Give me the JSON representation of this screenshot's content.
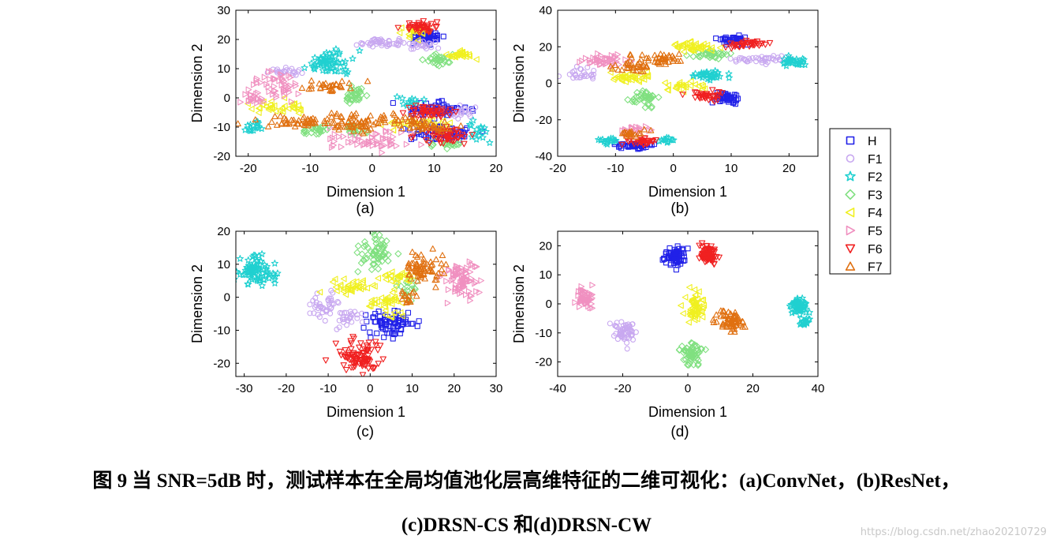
{
  "legend": [
    {
      "label": "H",
      "marker": "square",
      "color": "#2020e8"
    },
    {
      "label": "F1",
      "marker": "circle",
      "color": "#c8a8f0"
    },
    {
      "label": "F2",
      "marker": "star",
      "color": "#20d0d0"
    },
    {
      "label": "F3",
      "marker": "diamond",
      "color": "#80e080"
    },
    {
      "label": "F4",
      "marker": "triangle-left",
      "color": "#f0f020"
    },
    {
      "label": "F5",
      "marker": "triangle-right",
      "color": "#f090c0"
    },
    {
      "label": "F6",
      "marker": "triangle-down",
      "color": "#f02020"
    },
    {
      "label": "F7",
      "marker": "triangle-up",
      "color": "#e07010"
    }
  ],
  "caption": {
    "line1": "图 9  当 SNR=5dB 时，测试样本在全局均值池化层高维特征的二维可视化：(a)ConvNet，(b)ResNet，",
    "line2": "(c)DRSN-CS 和(d)DRSN-CW"
  },
  "watermark": "https://blog.csdn.net/zhao20210729",
  "chart_data": [
    {
      "type": "scatter",
      "panel": "(a)",
      "xlabel": "Dimension 1",
      "ylabel": "Dimension 2",
      "xlim": [
        -22,
        20
      ],
      "ylim": [
        -20,
        30
      ],
      "xticks": [
        -20,
        -10,
        0,
        10,
        20
      ],
      "yticks": [
        -20,
        -10,
        0,
        10,
        20,
        30
      ],
      "series": [
        {
          "name": "H",
          "clusters": [
            {
              "cx": 9,
              "cy": 21,
              "sx": 1.2,
              "sy": 1.2,
              "n": 60
            },
            {
              "cx": 10,
              "cy": -4,
              "sx": 2.5,
              "sy": 1.2,
              "n": 70
            },
            {
              "cx": 11,
              "cy": -12,
              "sx": 2.5,
              "sy": 1.5,
              "n": 60
            }
          ]
        },
        {
          "name": "F1",
          "clusters": [
            {
              "cx": 1,
              "cy": 19,
              "sx": 2.0,
              "sy": 0.8,
              "n": 45
            },
            {
              "cx": 8,
              "cy": 18,
              "sx": 1.2,
              "sy": 0.8,
              "n": 25
            },
            {
              "cx": -14,
              "cy": 9,
              "sx": 1.2,
              "sy": 0.8,
              "n": 25
            },
            {
              "cx": 15,
              "cy": -5,
              "sx": 1.0,
              "sy": 0.8,
              "n": 20
            }
          ]
        },
        {
          "name": "F2",
          "clusters": [
            {
              "cx": -7,
              "cy": 12,
              "sx": 1.5,
              "sy": 2.0,
              "n": 65
            },
            {
              "cx": -19,
              "cy": -10,
              "sx": 0.8,
              "sy": 1.0,
              "n": 15
            },
            {
              "cx": 6,
              "cy": -1,
              "sx": 0.8,
              "sy": 0.8,
              "n": 12
            },
            {
              "cx": 17,
              "cy": -12,
              "sx": 0.8,
              "sy": 1.5,
              "n": 15
            }
          ]
        },
        {
          "name": "F3",
          "clusters": [
            {
              "cx": -3,
              "cy": 1,
              "sx": 1.0,
              "sy": 1.2,
              "n": 35
            },
            {
              "cx": 11,
              "cy": 13,
              "sx": 1.0,
              "sy": 1.2,
              "n": 25
            },
            {
              "cx": -9,
              "cy": -11,
              "sx": 1.0,
              "sy": 1.0,
              "n": 25
            },
            {
              "cx": -3,
              "cy": -11,
              "sx": 1.0,
              "sy": 1.0,
              "n": 20
            },
            {
              "cx": 12,
              "cy": -16,
              "sx": 1.5,
              "sy": 0.8,
              "n": 20
            }
          ]
        },
        {
          "name": "F4",
          "clusters": [
            {
              "cx": 14,
              "cy": 15,
              "sx": 1.2,
              "sy": 0.6,
              "n": 30
            },
            {
              "cx": 7,
              "cy": 23,
              "sx": 1.5,
              "sy": 1.2,
              "n": 25
            },
            {
              "cx": -15,
              "cy": -3,
              "sx": 2.5,
              "sy": 1.2,
              "n": 35
            },
            {
              "cx": 7,
              "cy": -9,
              "sx": 3.0,
              "sy": 1.2,
              "n": 30
            }
          ]
        },
        {
          "name": "F5",
          "clusters": [
            {
              "cx": -15,
              "cy": 4,
              "sx": 2.0,
              "sy": 2.5,
              "n": 45
            },
            {
              "cx": -19,
              "cy": 0,
              "sx": 1.2,
              "sy": 1.2,
              "n": 20
            },
            {
              "cx": 0,
              "cy": -15,
              "sx": 3.0,
              "sy": 1.8,
              "n": 55
            }
          ]
        },
        {
          "name": "F6",
          "clusters": [
            {
              "cx": 8,
              "cy": 24,
              "sx": 1.2,
              "sy": 1.0,
              "n": 40
            },
            {
              "cx": 9,
              "cy": -5,
              "sx": 2.0,
              "sy": 1.0,
              "n": 45
            },
            {
              "cx": 12,
              "cy": -13,
              "sx": 2.0,
              "sy": 1.5,
              "n": 50
            }
          ]
        },
        {
          "name": "F7",
          "clusters": [
            {
              "cx": -7,
              "cy": 4,
              "sx": 2.0,
              "sy": 1.0,
              "n": 30
            },
            {
              "cx": -11,
              "cy": -8,
              "sx": 4.0,
              "sy": 1.0,
              "n": 55
            },
            {
              "cx": -3,
              "cy": -9,
              "sx": 2.0,
              "sy": 2.0,
              "n": 40
            },
            {
              "cx": 3,
              "cy": -8,
              "sx": 3.0,
              "sy": 1.0,
              "n": 35
            },
            {
              "cx": 9,
              "cy": -10,
              "sx": 2.5,
              "sy": 1.0,
              "n": 30
            }
          ]
        }
      ]
    },
    {
      "type": "scatter",
      "panel": "(b)",
      "xlabel": "Dimension 1",
      "ylabel": "Dimension 2",
      "xlim": [
        -20,
        25
      ],
      "ylim": [
        -40,
        40
      ],
      "xticks": [
        -20,
        -10,
        0,
        10,
        20
      ],
      "yticks": [
        -40,
        -20,
        0,
        20,
        40
      ],
      "series": [
        {
          "name": "H",
          "clusters": [
            {
              "cx": 10,
              "cy": 24,
              "sx": 1.2,
              "sy": 1.0,
              "n": 40
            },
            {
              "cx": 9,
              "cy": -8,
              "sx": 1.2,
              "sy": 1.5,
              "n": 45
            },
            {
              "cx": -7,
              "cy": -34,
              "sx": 1.5,
              "sy": 1.0,
              "n": 40
            }
          ]
        },
        {
          "name": "F1",
          "clusters": [
            {
              "cx": 15,
              "cy": 13,
              "sx": 2.5,
              "sy": 1.0,
              "n": 40
            },
            {
              "cx": -16,
              "cy": 5,
              "sx": 1.5,
              "sy": 2.0,
              "n": 25
            }
          ]
        },
        {
          "name": "F2",
          "clusters": [
            {
              "cx": 21,
              "cy": 12,
              "sx": 1.0,
              "sy": 1.2,
              "n": 30
            },
            {
              "cx": 7,
              "cy": 4,
              "sx": 1.5,
              "sy": 1.5,
              "n": 35
            },
            {
              "cx": -11,
              "cy": -31,
              "sx": 1.0,
              "sy": 1.0,
              "n": 15
            },
            {
              "cx": -1,
              "cy": -31,
              "sx": 0.8,
              "sy": 0.8,
              "n": 12
            }
          ]
        },
        {
          "name": "F3",
          "clusters": [
            {
              "cx": -5,
              "cy": -8,
              "sx": 1.2,
              "sy": 2.0,
              "n": 40
            },
            {
              "cx": 7,
              "cy": 16,
              "sx": 1.5,
              "sy": 1.2,
              "n": 35
            }
          ]
        },
        {
          "name": "F4",
          "clusters": [
            {
              "cx": 4,
              "cy": 20,
              "sx": 2.0,
              "sy": 1.2,
              "n": 40
            },
            {
              "cx": -7,
              "cy": 3,
              "sx": 2.0,
              "sy": 1.5,
              "n": 35
            },
            {
              "cx": 1,
              "cy": -2,
              "sx": 2.0,
              "sy": 1.2,
              "n": 25
            }
          ]
        },
        {
          "name": "F5",
          "clusters": [
            {
              "cx": -12,
              "cy": 12,
              "sx": 2.0,
              "sy": 1.5,
              "n": 45
            },
            {
              "cx": -6,
              "cy": -26,
              "sx": 1.0,
              "sy": 1.0,
              "n": 20
            }
          ]
        },
        {
          "name": "F6",
          "clusters": [
            {
              "cx": 13,
              "cy": 21,
              "sx": 1.5,
              "sy": 1.2,
              "n": 35
            },
            {
              "cx": 6,
              "cy": -7,
              "sx": 1.5,
              "sy": 1.2,
              "n": 35
            },
            {
              "cx": -5,
              "cy": -32,
              "sx": 1.5,
              "sy": 1.0,
              "n": 30
            }
          ]
        },
        {
          "name": "F7",
          "clusters": [
            {
              "cx": -2,
              "cy": 14,
              "sx": 2.5,
              "sy": 1.5,
              "n": 40
            },
            {
              "cx": -7,
              "cy": 9,
              "sx": 2.0,
              "sy": 1.5,
              "n": 30
            },
            {
              "cx": -8,
              "cy": -28,
              "sx": 1.5,
              "sy": 1.0,
              "n": 20
            }
          ]
        }
      ]
    },
    {
      "type": "scatter",
      "panel": "(c)",
      "xlabel": "Dimension 1",
      "ylabel": "Dimension 2",
      "xlim": [
        -32,
        30
      ],
      "ylim": [
        -24,
        20
      ],
      "xticks": [
        -30,
        -20,
        -10,
        0,
        10,
        20,
        30
      ],
      "yticks": [
        -20,
        -10,
        0,
        10,
        20
      ],
      "series": [
        {
          "name": "H",
          "clusters": [
            {
              "cx": 5,
              "cy": -8,
              "sx": 2.5,
              "sy": 1.8,
              "n": 80
            }
          ]
        },
        {
          "name": "F1",
          "clusters": [
            {
              "cx": -11,
              "cy": -2,
              "sx": 1.8,
              "sy": 2.0,
              "n": 40
            },
            {
              "cx": -5,
              "cy": -6,
              "sx": 1.5,
              "sy": 1.5,
              "n": 25
            }
          ]
        },
        {
          "name": "F2",
          "clusters": [
            {
              "cx": -27,
              "cy": 8,
              "sx": 2.0,
              "sy": 2.2,
              "n": 80
            }
          ]
        },
        {
          "name": "F3",
          "clusters": [
            {
              "cx": 1,
              "cy": 14,
              "sx": 1.8,
              "sy": 2.5,
              "n": 65
            },
            {
              "cx": 9,
              "cy": 3,
              "sx": 1.2,
              "sy": 1.5,
              "n": 20
            }
          ]
        },
        {
          "name": "F4",
          "clusters": [
            {
              "cx": -4,
              "cy": 3,
              "sx": 2.5,
              "sy": 1.2,
              "n": 35
            },
            {
              "cx": 4,
              "cy": -2,
              "sx": 2.0,
              "sy": 2.0,
              "n": 35
            },
            {
              "cx": 6,
              "cy": 6,
              "sx": 2.0,
              "sy": 1.0,
              "n": 25
            }
          ]
        },
        {
          "name": "F5",
          "clusters": [
            {
              "cx": 22,
              "cy": 5,
              "sx": 2.0,
              "sy": 3.0,
              "n": 80
            }
          ]
        },
        {
          "name": "F6",
          "clusters": [
            {
              "cx": -3,
              "cy": -18,
              "sx": 2.5,
              "sy": 2.5,
              "n": 90
            }
          ]
        },
        {
          "name": "F7",
          "clusters": [
            {
              "cx": 13,
              "cy": 9,
              "sx": 2.5,
              "sy": 2.5,
              "n": 65
            },
            {
              "cx": 9,
              "cy": 0,
              "sx": 1.2,
              "sy": 1.2,
              "n": 15
            }
          ]
        }
      ]
    },
    {
      "type": "scatter",
      "panel": "(d)",
      "xlabel": "Dimension 1",
      "ylabel": "Dimension 2",
      "xlim": [
        -40,
        40
      ],
      "ylim": [
        -25,
        25
      ],
      "xticks": [
        -40,
        -20,
        0,
        20,
        40
      ],
      "yticks": [
        -20,
        -10,
        0,
        10,
        20
      ],
      "series": [
        {
          "name": "H",
          "clusters": [
            {
              "cx": -4,
              "cy": 16,
              "sx": 1.5,
              "sy": 1.5,
              "n": 70
            }
          ]
        },
        {
          "name": "F1",
          "clusters": [
            {
              "cx": -19,
              "cy": -9,
              "sx": 1.5,
              "sy": 2.0,
              "n": 55
            }
          ]
        },
        {
          "name": "F2",
          "clusters": [
            {
              "cx": 34,
              "cy": -1,
              "sx": 1.2,
              "sy": 1.5,
              "n": 55
            },
            {
              "cx": 36,
              "cy": -6,
              "sx": 0.8,
              "sy": 0.8,
              "n": 15
            }
          ]
        },
        {
          "name": "F3",
          "clusters": [
            {
              "cx": 1,
              "cy": -17,
              "sx": 1.5,
              "sy": 2.0,
              "n": 60
            }
          ]
        },
        {
          "name": "F4",
          "clusters": [
            {
              "cx": 2,
              "cy": -1,
              "sx": 1.5,
              "sy": 2.5,
              "n": 60
            }
          ]
        },
        {
          "name": "F5",
          "clusters": [
            {
              "cx": -31,
              "cy": 2,
              "sx": 1.5,
              "sy": 1.8,
              "n": 55
            }
          ]
        },
        {
          "name": "F6",
          "clusters": [
            {
              "cx": 6,
              "cy": 17,
              "sx": 1.5,
              "sy": 1.5,
              "n": 70
            }
          ]
        },
        {
          "name": "F7",
          "clusters": [
            {
              "cx": 13,
              "cy": -6,
              "sx": 2.0,
              "sy": 1.8,
              "n": 65
            }
          ]
        }
      ]
    }
  ]
}
